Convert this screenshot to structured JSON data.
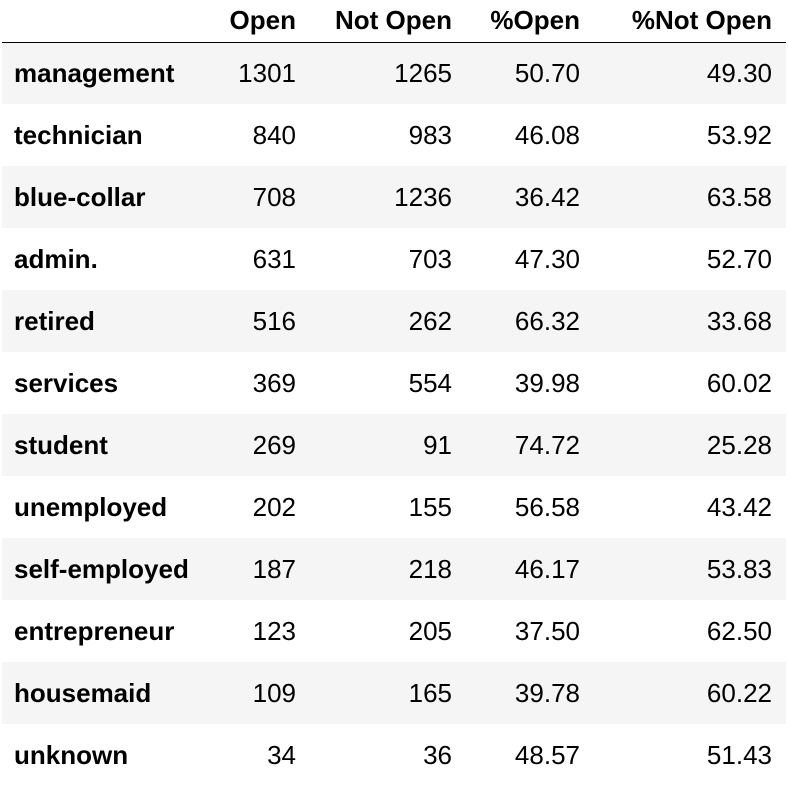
{
  "table": {
    "columns": [
      "",
      "Open",
      "Not Open",
      "%Open",
      "%Not Open"
    ],
    "rows": [
      {
        "label": "management",
        "open": "1301",
        "not_open": "1265",
        "pct_open": "50.70",
        "pct_not_open": "49.30"
      },
      {
        "label": "technician",
        "open": "840",
        "not_open": "983",
        "pct_open": "46.08",
        "pct_not_open": "53.92"
      },
      {
        "label": "blue-collar",
        "open": "708",
        "not_open": "1236",
        "pct_open": "36.42",
        "pct_not_open": "63.58"
      },
      {
        "label": "admin.",
        "open": "631",
        "not_open": "703",
        "pct_open": "47.30",
        "pct_not_open": "52.70"
      },
      {
        "label": "retired",
        "open": "516",
        "not_open": "262",
        "pct_open": "66.32",
        "pct_not_open": "33.68"
      },
      {
        "label": "services",
        "open": "369",
        "not_open": "554",
        "pct_open": "39.98",
        "pct_not_open": "60.02"
      },
      {
        "label": "student",
        "open": "269",
        "not_open": "91",
        "pct_open": "74.72",
        "pct_not_open": "25.28"
      },
      {
        "label": "unemployed",
        "open": "202",
        "not_open": "155",
        "pct_open": "56.58",
        "pct_not_open": "43.42"
      },
      {
        "label": "self-employed",
        "open": "187",
        "not_open": "218",
        "pct_open": "46.17",
        "pct_not_open": "53.83"
      },
      {
        "label": "entrepreneur",
        "open": "123",
        "not_open": "205",
        "pct_open": "37.50",
        "pct_not_open": "62.50"
      },
      {
        "label": "housemaid",
        "open": "109",
        "not_open": "165",
        "pct_open": "39.78",
        "pct_not_open": "60.22"
      },
      {
        "label": "unknown",
        "open": "34",
        "not_open": "36",
        "pct_open": "48.57",
        "pct_not_open": "51.43"
      }
    ]
  }
}
